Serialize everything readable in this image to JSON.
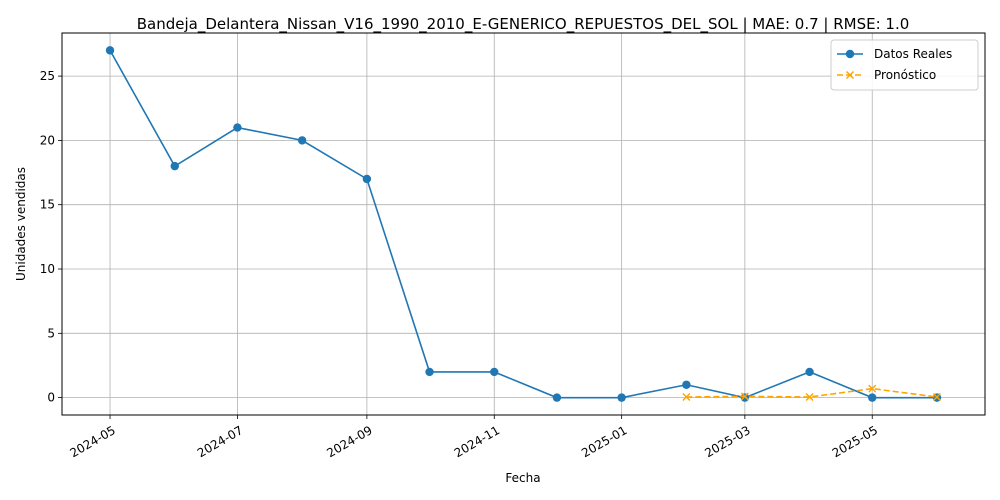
{
  "chart_data": {
    "type": "line",
    "title": "Bandeja_Delantera_Nissan_V16_1990_2010_E-GENERICO_REPUESTOS_DEL_SOL | MAE: 0.7 | RMSE: 1.0",
    "xlabel": "Fecha",
    "ylabel": "Unidades vendidas",
    "x_ticks": [
      "2024-05",
      "2024-07",
      "2024-09",
      "2024-11",
      "2025-01",
      "2025-03",
      "2025-05"
    ],
    "y_ticks": [
      "0",
      "5",
      "10",
      "15",
      "20",
      "25"
    ],
    "ylim": [
      -1.35,
      28.35
    ],
    "xlim": [
      "2024-04-08",
      "2025-06-24"
    ],
    "grid": true,
    "legend_position": "top-right",
    "series": [
      {
        "name": "Datos Reales",
        "color": "#1f77b4",
        "marker": "circle",
        "linestyle": "solid",
        "x": [
          "2024-05-01",
          "2024-06-01",
          "2024-07-01",
          "2024-08-01",
          "2024-09-01",
          "2024-10-01",
          "2024-11-01",
          "2024-12-01",
          "2025-01-01",
          "2025-02-01",
          "2025-03-01",
          "2025-04-01",
          "2025-05-01",
          "2025-06-01"
        ],
        "values": [
          27,
          18,
          21,
          20,
          17,
          2,
          2,
          0,
          0,
          1,
          0,
          2,
          0,
          0
        ]
      },
      {
        "name": "Pronóstico",
        "color": "#ffa500",
        "marker": "x",
        "linestyle": "dashed",
        "x": [
          "2025-02-01",
          "2025-03-01",
          "2025-04-01",
          "2025-05-01",
          "2025-06-01"
        ],
        "values": [
          0.05,
          0.1,
          0.05,
          0.7,
          0.05
        ]
      }
    ]
  }
}
